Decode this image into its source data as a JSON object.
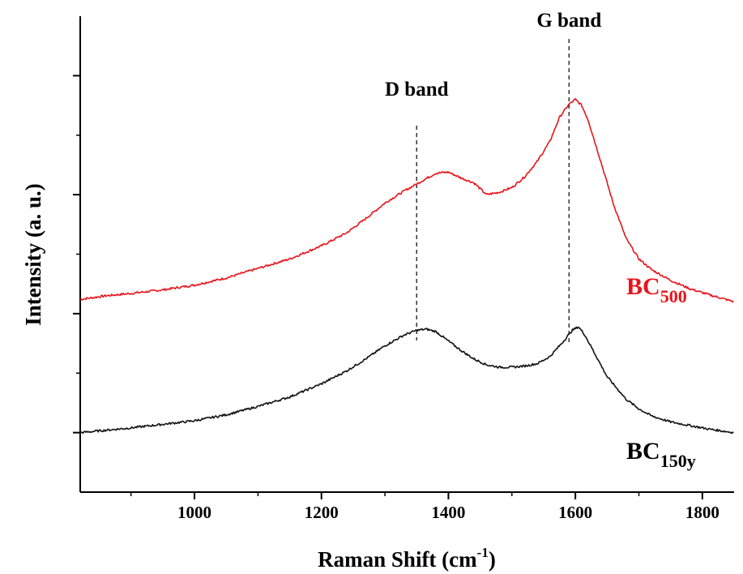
{
  "chart_data": {
    "type": "line",
    "xlabel_main": "Raman Shift (cm",
    "xlabel_sup": "-1",
    "xlabel_end": ")",
    "ylabel": "Intensity (a. u.)",
    "xlim": [
      820,
      1850
    ],
    "ylim": [
      -0.5,
      3.5
    ],
    "x_ticks": [
      1000,
      1200,
      1400,
      1600,
      1800
    ],
    "x_tick_labels": [
      "1000",
      "1200",
      "1400",
      "1600",
      "1800"
    ],
    "y_major_ticks": [
      0,
      1,
      2,
      3
    ],
    "y_minor_ticks": [
      0.5,
      1.5,
      2.5
    ],
    "y_tick_labels_shown": false,
    "annotations": [
      {
        "text": "D band",
        "x": 1350
      },
      {
        "text": "G band",
        "x": 1590
      }
    ],
    "series": [
      {
        "label_main": "BC",
        "label_sub": "500",
        "color": "#e8141c",
        "x": [
          820,
          860,
          900,
          950,
          1000,
          1050,
          1100,
          1150,
          1200,
          1240,
          1270,
          1300,
          1330,
          1360,
          1380,
          1400,
          1420,
          1440,
          1460,
          1480,
          1500,
          1520,
          1540,
          1560,
          1575,
          1590,
          1600,
          1610,
          1620,
          1640,
          1660,
          1680,
          1700,
          1720,
          1750,
          1780,
          1810,
          1850
        ],
        "y": [
          1.12,
          1.15,
          1.17,
          1.2,
          1.24,
          1.3,
          1.38,
          1.46,
          1.57,
          1.68,
          1.8,
          1.93,
          2.03,
          2.12,
          2.18,
          2.19,
          2.14,
          2.1,
          2.0,
          2.02,
          2.06,
          2.15,
          2.28,
          2.45,
          2.65,
          2.76,
          2.8,
          2.75,
          2.63,
          2.28,
          1.92,
          1.63,
          1.46,
          1.37,
          1.28,
          1.21,
          1.16,
          1.1
        ]
      },
      {
        "label_main": "BC",
        "label_sub": "150y",
        "color": "#111111",
        "x": [
          820,
          860,
          900,
          950,
          1000,
          1050,
          1100,
          1150,
          1200,
          1240,
          1270,
          1300,
          1330,
          1350,
          1365,
          1380,
          1400,
          1420,
          1440,
          1460,
          1480,
          1500,
          1520,
          1540,
          1560,
          1580,
          1595,
          1605,
          1615,
          1630,
          1650,
          1680,
          1700,
          1720,
          1750,
          1780,
          1810,
          1850
        ],
        "y": [
          0.0,
          0.02,
          0.04,
          0.07,
          0.1,
          0.15,
          0.22,
          0.3,
          0.41,
          0.52,
          0.62,
          0.73,
          0.82,
          0.86,
          0.87,
          0.85,
          0.77,
          0.69,
          0.62,
          0.57,
          0.55,
          0.55,
          0.56,
          0.58,
          0.64,
          0.76,
          0.86,
          0.89,
          0.82,
          0.67,
          0.47,
          0.28,
          0.2,
          0.14,
          0.09,
          0.06,
          0.03,
          0.0
        ]
      }
    ]
  }
}
